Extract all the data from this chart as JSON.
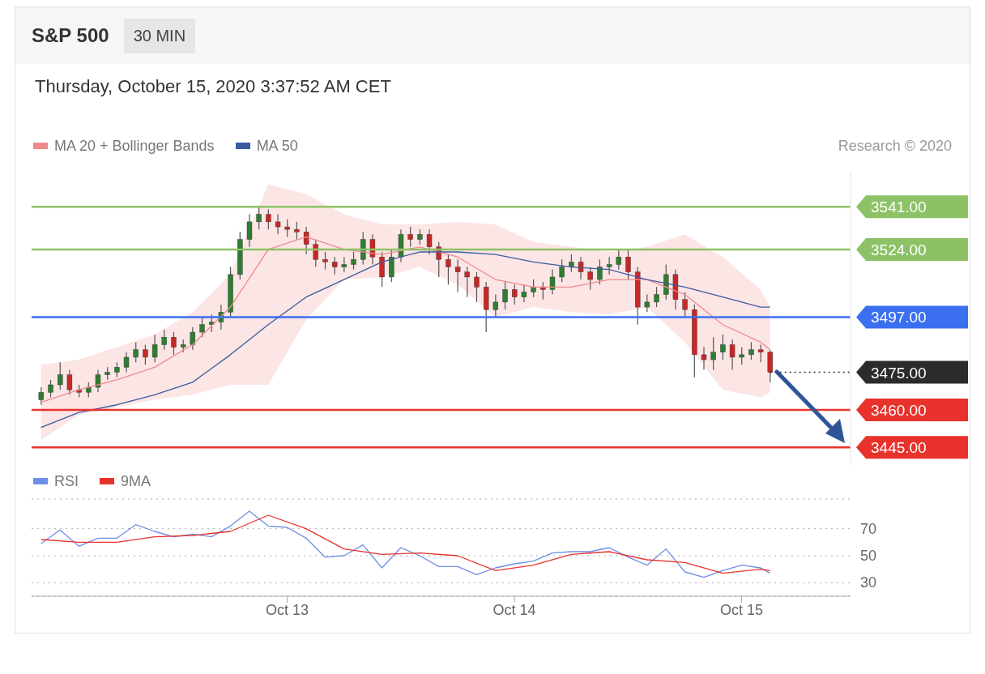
{
  "chart_data": [
    {
      "type": "candlestick",
      "title": "S&P 500",
      "subtitle": "30 MIN",
      "annotations": [
        "Thursday, October 15, 2020 3:37:52 AM CET",
        "Research © 2020"
      ],
      "legend": "top left",
      "tick_labels": "y",
      "xlim": [
        "2020-10-11T21:00",
        "2020-10-15T11:30"
      ],
      "ylim": [
        3438,
        3555
      ],
      "yticks": [
        {
          "value": 3541,
          "label": "3541.00"
        },
        {
          "value": 3524,
          "label": "3524.00"
        },
        {
          "value": 3497,
          "label": "3497.00"
        },
        {
          "value": 3475,
          "label": "3475.00"
        },
        {
          "value": 3460,
          "label": "3460.00"
        },
        {
          "value": 3445,
          "label": "3445.00"
        }
      ],
      "x": [
        "2020-10-11T22:00",
        "2020-10-11T23:00",
        "2020-10-12T00:00",
        "2020-10-12T01:00",
        "2020-10-12T02:00",
        "2020-10-12T03:00",
        "2020-10-12T04:00",
        "2020-10-12T05:00",
        "2020-10-12T06:00",
        "2020-10-12T07:00",
        "2020-10-12T08:00",
        "2020-10-12T09:00",
        "2020-10-12T10:00",
        "2020-10-12T11:00",
        "2020-10-12T12:00",
        "2020-10-12T13:00",
        "2020-10-12T14:00",
        "2020-10-12T15:00",
        "2020-10-12T16:00",
        "2020-10-12T17:00",
        "2020-10-12T18:00",
        "2020-10-12T19:00",
        "2020-10-12T20:00",
        "2020-10-12T21:00",
        "2020-10-12T22:00",
        "2020-10-12T23:00",
        "2020-10-13T00:00",
        "2020-10-13T01:00",
        "2020-10-13T02:00",
        "2020-10-13T03:00",
        "2020-10-13T04:00",
        "2020-10-13T05:00",
        "2020-10-13T06:00",
        "2020-10-13T07:00",
        "2020-10-13T08:00",
        "2020-10-13T09:00",
        "2020-10-13T10:00",
        "2020-10-13T11:00",
        "2020-10-13T12:00",
        "2020-10-13T13:00",
        "2020-10-13T14:00",
        "2020-10-13T15:00",
        "2020-10-13T16:00",
        "2020-10-13T17:00",
        "2020-10-13T18:00",
        "2020-10-13T19:00",
        "2020-10-13T20:00",
        "2020-10-13T21:00",
        "2020-10-13T22:00",
        "2020-10-13T23:00",
        "2020-10-14T00:00",
        "2020-10-14T01:00",
        "2020-10-14T02:00",
        "2020-10-14T03:00",
        "2020-10-14T04:00",
        "2020-10-14T05:00",
        "2020-10-14T06:00",
        "2020-10-14T07:00",
        "2020-10-14T08:00",
        "2020-10-14T09:00",
        "2020-10-14T10:00",
        "2020-10-14T11:00",
        "2020-10-14T12:00",
        "2020-10-14T13:00",
        "2020-10-14T14:00",
        "2020-10-14T15:00",
        "2020-10-14T16:00",
        "2020-10-14T17:00",
        "2020-10-14T18:00",
        "2020-10-14T19:00",
        "2020-10-14T20:00",
        "2020-10-14T21:00",
        "2020-10-14T22:00",
        "2020-10-14T23:00",
        "2020-10-15T00:00",
        "2020-10-15T01:00",
        "2020-10-15T02:00",
        "2020-10-15T03:00"
      ],
      "ohlc": [
        [
          3464,
          3469,
          3462,
          3467
        ],
        [
          3467,
          3472,
          3465,
          3470
        ],
        [
          3470,
          3479,
          3468,
          3474
        ],
        [
          3474,
          3476,
          3466,
          3468
        ],
        [
          3468,
          3470,
          3465,
          3467
        ],
        [
          3467,
          3471,
          3465,
          3469
        ],
        [
          3469,
          3476,
          3467,
          3474
        ],
        [
          3474,
          3477,
          3472,
          3475
        ],
        [
          3475,
          3479,
          3473,
          3477
        ],
        [
          3477,
          3483,
          3475,
          3481
        ],
        [
          3481,
          3487,
          3479,
          3484
        ],
        [
          3484,
          3486,
          3478,
          3481
        ],
        [
          3481,
          3490,
          3479,
          3486
        ],
        [
          3486,
          3492,
          3484,
          3489
        ],
        [
          3489,
          3491,
          3482,
          3485
        ],
        [
          3485,
          3488,
          3483,
          3486
        ],
        [
          3486,
          3493,
          3484,
          3491
        ],
        [
          3491,
          3497,
          3489,
          3494
        ],
        [
          3494,
          3498,
          3491,
          3495
        ],
        [
          3495,
          3502,
          3492,
          3499
        ],
        [
          3499,
          3517,
          3497,
          3514
        ],
        [
          3514,
          3531,
          3512,
          3528
        ],
        [
          3528,
          3538,
          3525,
          3535
        ],
        [
          3535,
          3541,
          3532,
          3538
        ],
        [
          3538,
          3540,
          3532,
          3535
        ],
        [
          3535,
          3538,
          3530,
          3533
        ],
        [
          3533,
          3536,
          3529,
          3532
        ],
        [
          3532,
          3535,
          3528,
          3531
        ],
        [
          3531,
          3533,
          3522,
          3526
        ],
        [
          3526,
          3528,
          3517,
          3520
        ],
        [
          3520,
          3523,
          3516,
          3519
        ],
        [
          3519,
          3521,
          3514,
          3517
        ],
        [
          3517,
          3521,
          3515,
          3518
        ],
        [
          3518,
          3523,
          3516,
          3520
        ],
        [
          3520,
          3531,
          3518,
          3528
        ],
        [
          3528,
          3530,
          3518,
          3521
        ],
        [
          3521,
          3523,
          3509,
          3513
        ],
        [
          3513,
          3524,
          3511,
          3521
        ],
        [
          3521,
          3532,
          3519,
          3530
        ],
        [
          3530,
          3533,
          3525,
          3528
        ],
        [
          3528,
          3532,
          3526,
          3530
        ],
        [
          3530,
          3532,
          3522,
          3525
        ],
        [
          3525,
          3527,
          3513,
          3520
        ],
        [
          3520,
          3522,
          3510,
          3517
        ],
        [
          3517,
          3520,
          3507,
          3515
        ],
        [
          3515,
          3517,
          3505,
          3513
        ],
        [
          3513,
          3515,
          3503,
          3509
        ],
        [
          3509,
          3511,
          3491,
          3500
        ],
        [
          3500,
          3506,
          3497,
          3503
        ],
        [
          3503,
          3511,
          3500,
          3508
        ],
        [
          3508,
          3510,
          3502,
          3505
        ],
        [
          3505,
          3510,
          3503,
          3507
        ],
        [
          3507,
          3512,
          3505,
          3509
        ],
        [
          3509,
          3511,
          3504,
          3508
        ],
        [
          3508,
          3516,
          3506,
          3513
        ],
        [
          3513,
          3520,
          3511,
          3517
        ],
        [
          3517,
          3522,
          3515,
          3519
        ],
        [
          3519,
          3521,
          3512,
          3515
        ],
        [
          3515,
          3517,
          3508,
          3512
        ],
        [
          3512,
          3520,
          3510,
          3517
        ],
        [
          3517,
          3521,
          3514,
          3518
        ],
        [
          3518,
          3524,
          3516,
          3521
        ],
        [
          3521,
          3524,
          3512,
          3515
        ],
        [
          3515,
          3517,
          3494,
          3501
        ],
        [
          3501,
          3506,
          3499,
          3503
        ],
        [
          3503,
          3509,
          3501,
          3506
        ],
        [
          3506,
          3518,
          3504,
          3514
        ],
        [
          3514,
          3516,
          3500,
          3504
        ],
        [
          3504,
          3507,
          3497,
          3500
        ],
        [
          3500,
          3502,
          3473,
          3482
        ],
        [
          3482,
          3485,
          3476,
          3480
        ],
        [
          3480,
          3489,
          3476,
          3483
        ],
        [
          3483,
          3490,
          3480,
          3486
        ],
        [
          3486,
          3488,
          3476,
          3481
        ],
        [
          3481,
          3485,
          3478,
          3482
        ],
        [
          3482,
          3487,
          3480,
          3484
        ],
        [
          3484,
          3486,
          3479,
          3483
        ],
        [
          3483,
          3484,
          3471,
          3475
        ]
      ],
      "series": [
        {
          "name": "MA 20 + Bollinger Bands",
          "color": "#f08a8a",
          "type": "line",
          "x": [
            "2020-10-11T22:00",
            "2020-10-12T02:00",
            "2020-10-12T06:00",
            "2020-10-12T10:00",
            "2020-10-12T14:00",
            "2020-10-12T18:00",
            "2020-10-12T22:00",
            "2020-10-13T02:00",
            "2020-10-13T06:00",
            "2020-10-13T10:00",
            "2020-10-13T14:00",
            "2020-10-13T18:00",
            "2020-10-13T22:00",
            "2020-10-14T02:00",
            "2020-10-14T06:00",
            "2020-10-14T10:00",
            "2020-10-14T14:00",
            "2020-10-14T18:00",
            "2020-10-14T22:00",
            "2020-10-15T02:00",
            "2020-10-15T03:00"
          ],
          "values": [
            3463,
            3468,
            3472,
            3477,
            3486,
            3501,
            3524,
            3529,
            3524,
            3522,
            3525,
            3521,
            3512,
            3509,
            3509,
            3512,
            3512,
            3506,
            3494,
            3487,
            3484
          ],
          "upper": [
            3478,
            3480,
            3485,
            3490,
            3499,
            3514,
            3550,
            3546,
            3538,
            3534,
            3534,
            3535,
            3534,
            3527,
            3525,
            3523,
            3525,
            3530,
            3521,
            3508,
            3501
          ],
          "lower": [
            3448,
            3458,
            3461,
            3464,
            3466,
            3470,
            3470,
            3496,
            3512,
            3513,
            3517,
            3510,
            3497,
            3501,
            3499,
            3498,
            3501,
            3487,
            3468,
            3465,
            3467
          ]
        },
        {
          "name": "MA 50",
          "color": "#3a5ba0",
          "type": "line",
          "x": [
            "2020-10-11T22:00",
            "2020-10-12T02:00",
            "2020-10-12T06:00",
            "2020-10-12T10:00",
            "2020-10-12T14:00",
            "2020-10-12T18:00",
            "2020-10-12T22:00",
            "2020-10-13T02:00",
            "2020-10-13T06:00",
            "2020-10-13T10:00",
            "2020-10-13T14:00",
            "2020-10-13T18:00",
            "2020-10-13T22:00",
            "2020-10-14T02:00",
            "2020-10-14T06:00",
            "2020-10-14T10:00",
            "2020-10-14T14:00",
            "2020-10-14T18:00",
            "2020-10-14T22:00",
            "2020-10-15T02:00",
            "2020-10-15T03:00"
          ],
          "values": [
            3453,
            3459,
            3462,
            3466,
            3471,
            3482,
            3494,
            3505,
            3512,
            3519,
            3523,
            3523,
            3522,
            3519,
            3517,
            3516,
            3512,
            3509,
            3505,
            3501,
            3501
          ]
        }
      ],
      "ref_lines": [
        {
          "axis": "y",
          "value": 3541,
          "color": "#8cc265",
          "line_style": "solid"
        },
        {
          "axis": "y",
          "value": 3524,
          "color": "#8cc265",
          "line_style": "solid"
        },
        {
          "axis": "y",
          "value": 3497,
          "color": "#3b6ff0",
          "line_style": "solid"
        },
        {
          "axis": "y",
          "value": 3475,
          "color": "#2b2b2b",
          "line_style": "dotted"
        },
        {
          "axis": "y",
          "value": 3460,
          "color": "#e8322b",
          "line_style": "solid"
        },
        {
          "axis": "y",
          "value": 3445,
          "color": "#e8322b",
          "line_style": "solid"
        }
      ]
    },
    {
      "type": "line",
      "legend": "top left",
      "grid": "y",
      "xlim": [
        "2020-10-11T21:00",
        "2020-10-15T11:30"
      ],
      "xticks": [
        {
          "value": "2020-10-13T00:00",
          "label": "Oct 13"
        },
        {
          "value": "2020-10-14T00:00",
          "label": "Oct 14"
        },
        {
          "value": "2020-10-15T00:00",
          "label": "Oct 15"
        }
      ],
      "ylim": [
        20,
        92
      ],
      "yticks": [
        30,
        50,
        70
      ],
      "series": [
        {
          "name": "RSI",
          "color": "#6f8fe6",
          "x": [
            "2020-10-11T22:00",
            "2020-10-12T00:00",
            "2020-10-12T02:00",
            "2020-10-12T04:00",
            "2020-10-12T06:00",
            "2020-10-12T08:00",
            "2020-10-12T10:00",
            "2020-10-12T12:00",
            "2020-10-12T14:00",
            "2020-10-12T16:00",
            "2020-10-12T18:00",
            "2020-10-12T20:00",
            "2020-10-12T22:00",
            "2020-10-13T00:00",
            "2020-10-13T02:00",
            "2020-10-13T04:00",
            "2020-10-13T06:00",
            "2020-10-13T08:00",
            "2020-10-13T10:00",
            "2020-10-13T12:00",
            "2020-10-13T14:00",
            "2020-10-13T16:00",
            "2020-10-13T18:00",
            "2020-10-13T20:00",
            "2020-10-13T22:00",
            "2020-10-14T00:00",
            "2020-10-14T02:00",
            "2020-10-14T04:00",
            "2020-10-14T06:00",
            "2020-10-14T08:00",
            "2020-10-14T10:00",
            "2020-10-14T12:00",
            "2020-10-14T14:00",
            "2020-10-14T16:00",
            "2020-10-14T18:00",
            "2020-10-14T20:00",
            "2020-10-14T22:00",
            "2020-10-15T00:00",
            "2020-10-15T02:00",
            "2020-10-15T03:00"
          ],
          "values": [
            59,
            69,
            57,
            63,
            63,
            73,
            68,
            64,
            66,
            64,
            72,
            83,
            72,
            71,
            63,
            49,
            50,
            58,
            41,
            56,
            50,
            42,
            42,
            36,
            41,
            44,
            46,
            52,
            53,
            53,
            56,
            49,
            43,
            55,
            38,
            34,
            39,
            43,
            41,
            37
          ]
        },
        {
          "name": "9MA",
          "color": "#e8322b",
          "x": [
            "2020-10-11T22:00",
            "2020-10-12T02:00",
            "2020-10-12T06:00",
            "2020-10-12T10:00",
            "2020-10-12T14:00",
            "2020-10-12T18:00",
            "2020-10-12T22:00",
            "2020-10-13T02:00",
            "2020-10-13T06:00",
            "2020-10-13T10:00",
            "2020-10-13T14:00",
            "2020-10-13T18:00",
            "2020-10-13T22:00",
            "2020-10-14T02:00",
            "2020-10-14T06:00",
            "2020-10-14T10:00",
            "2020-10-14T14:00",
            "2020-10-14T18:00",
            "2020-10-14T22:00",
            "2020-10-15T02:00",
            "2020-10-15T03:00"
          ],
          "values": [
            62,
            60,
            60,
            64,
            65,
            68,
            80,
            70,
            55,
            51,
            52,
            50,
            39,
            43,
            51,
            53,
            47,
            45,
            37,
            40,
            39
          ]
        }
      ]
    }
  ]
}
